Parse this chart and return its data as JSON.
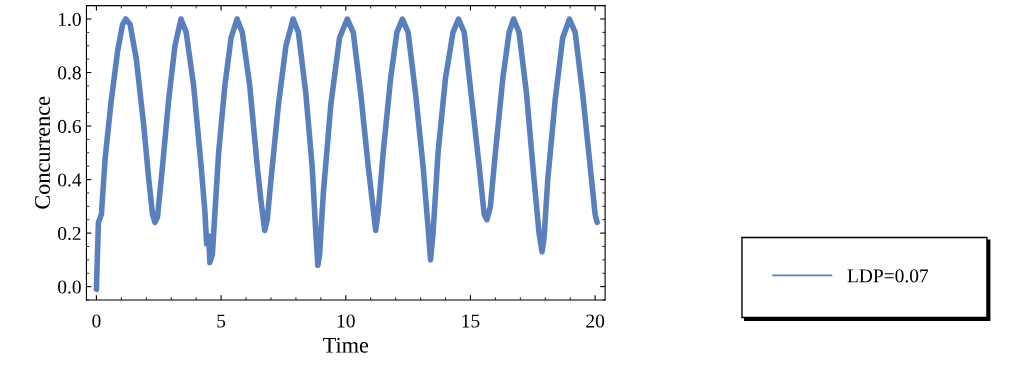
{
  "chart_data": {
    "type": "line",
    "xlabel": "Time",
    "ylabel": "Concurrence",
    "xlim": [
      -0.4,
      20.4
    ],
    "ylim": [
      -0.05,
      1.05
    ],
    "xticks": [
      0,
      5,
      10,
      15,
      20
    ],
    "yticks": [
      {
        "value": 0,
        "label": "0.0"
      },
      {
        "value": 0.2,
        "label": "0.2"
      },
      {
        "value": 0.4,
        "label": "0.4"
      },
      {
        "value": 0.6,
        "label": "0.6"
      },
      {
        "value": 0.8,
        "label": "0.8"
      },
      {
        "value": 1,
        "label": "1.0"
      }
    ],
    "grid": false,
    "legend": "right",
    "marker": "none",
    "line_style": "solid",
    "series": [
      {
        "name": "LDP=0.07",
        "color": "#5a7fbd",
        "x": [
          0,
          0.08,
          0.2,
          0.35,
          0.6,
          0.85,
          1.05,
          1.18,
          1.35,
          1.6,
          1.9,
          2.1,
          2.25,
          2.35,
          2.45,
          2.65,
          2.9,
          3.15,
          3.39,
          3.6,
          3.9,
          4.2,
          4.35,
          4.42,
          4.5,
          4.55,
          4.65,
          4.9,
          5.15,
          5.4,
          5.64,
          5.85,
          6.15,
          6.45,
          6.6,
          6.75,
          6.85,
          7.0,
          7.3,
          7.6,
          7.89,
          8.1,
          8.4,
          8.65,
          8.8,
          8.88,
          8.95,
          9.1,
          9.4,
          9.75,
          10.06,
          10.3,
          10.6,
          10.9,
          11.05,
          11.2,
          11.3,
          11.5,
          11.8,
          12.05,
          12.27,
          12.5,
          12.8,
          13.1,
          13.3,
          13.4,
          13.5,
          13.7,
          14.0,
          14.3,
          14.52,
          14.75,
          15.05,
          15.35,
          15.55,
          15.66,
          15.8,
          16.0,
          16.3,
          16.55,
          16.73,
          16.95,
          17.25,
          17.55,
          17.75,
          17.87,
          17.95,
          18.1,
          18.4,
          18.7,
          18.97,
          19.2,
          19.5,
          19.8,
          20.0,
          20.08
        ],
        "values": [
          -0.01,
          0.24,
          0.27,
          0.48,
          0.7,
          0.88,
          0.98,
          1.0,
          0.98,
          0.85,
          0.6,
          0.4,
          0.27,
          0.24,
          0.26,
          0.45,
          0.7,
          0.9,
          1.0,
          0.95,
          0.75,
          0.45,
          0.28,
          0.16,
          0.19,
          0.09,
          0.12,
          0.5,
          0.75,
          0.93,
          1.0,
          0.95,
          0.75,
          0.45,
          0.32,
          0.21,
          0.25,
          0.4,
          0.68,
          0.9,
          1.0,
          0.95,
          0.72,
          0.45,
          0.2,
          0.08,
          0.12,
          0.35,
          0.68,
          0.93,
          1.0,
          0.95,
          0.72,
          0.45,
          0.33,
          0.21,
          0.28,
          0.5,
          0.78,
          0.95,
          1.0,
          0.95,
          0.72,
          0.45,
          0.22,
          0.1,
          0.2,
          0.5,
          0.78,
          0.95,
          1.0,
          0.95,
          0.7,
          0.45,
          0.27,
          0.25,
          0.3,
          0.5,
          0.78,
          0.95,
          1.0,
          0.95,
          0.72,
          0.4,
          0.2,
          0.13,
          0.18,
          0.4,
          0.7,
          0.93,
          1.0,
          0.95,
          0.72,
          0.45,
          0.27,
          0.24
        ]
      }
    ]
  }
}
